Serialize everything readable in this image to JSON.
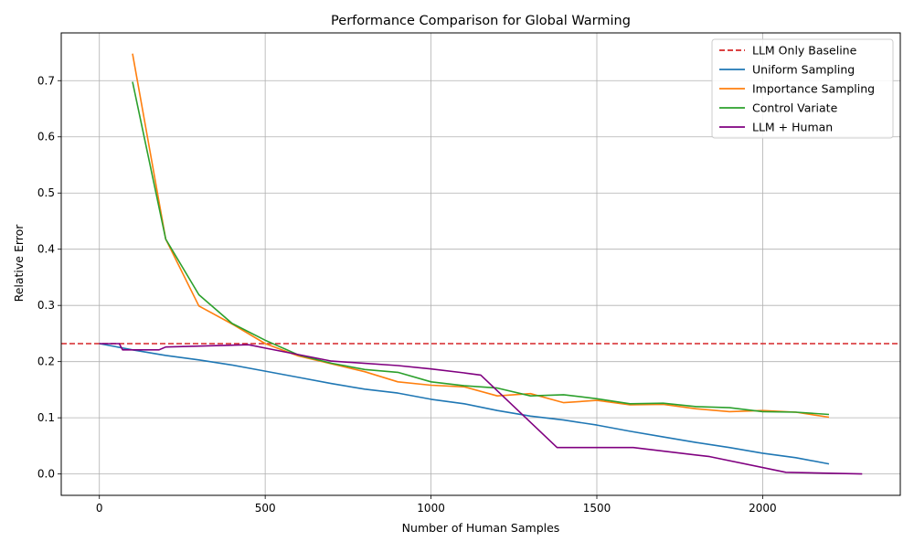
{
  "chart_data": {
    "type": "line",
    "title": "Performance Comparison for Global Warming",
    "xlabel": "Number of Human Samples",
    "ylabel": "Relative Error",
    "xlim": [
      -115,
      2415
    ],
    "ylim": [
      -0.038,
      0.785
    ],
    "xticks": [
      0,
      500,
      1000,
      1500,
      2000
    ],
    "yticks": [
      0.0,
      0.1,
      0.2,
      0.3,
      0.4,
      0.5,
      0.6,
      0.7
    ],
    "xtick_labels": [
      "0",
      "500",
      "1000",
      "1500",
      "2000"
    ],
    "ytick_labels": [
      "0.0",
      "0.1",
      "0.2",
      "0.3",
      "0.4",
      "0.5",
      "0.6",
      "0.7"
    ],
    "grid": true,
    "legend_position": "top-right",
    "baseline": {
      "name": "LLM Only Baseline",
      "y": 0.232,
      "color": "#d62728",
      "style": "dashed"
    },
    "series": [
      {
        "name": "Uniform Sampling",
        "color": "#1f77b4",
        "points": [
          [
            0,
            0.232
          ],
          [
            100,
            0.221
          ],
          [
            200,
            0.211
          ],
          [
            300,
            0.203
          ],
          [
            400,
            0.194
          ],
          [
            500,
            0.183
          ],
          [
            600,
            0.172
          ],
          [
            700,
            0.161
          ],
          [
            800,
            0.151
          ],
          [
            900,
            0.144
          ],
          [
            1000,
            0.133
          ],
          [
            1100,
            0.125
          ],
          [
            1200,
            0.113
          ],
          [
            1300,
            0.103
          ],
          [
            1400,
            0.096
          ],
          [
            1500,
            0.087
          ],
          [
            1600,
            0.076
          ],
          [
            1700,
            0.066
          ],
          [
            1800,
            0.056
          ],
          [
            1900,
            0.047
          ],
          [
            2000,
            0.037
          ],
          [
            2100,
            0.029
          ],
          [
            2200,
            0.018
          ]
        ]
      },
      {
        "name": "Importance Sampling",
        "color": "#ff7f0e",
        "points": [
          [
            100,
            0.748
          ],
          [
            200,
            0.418
          ],
          [
            300,
            0.299
          ],
          [
            400,
            0.267
          ],
          [
            500,
            0.232
          ],
          [
            600,
            0.21
          ],
          [
            700,
            0.196
          ],
          [
            800,
            0.182
          ],
          [
            900,
            0.164
          ],
          [
            1000,
            0.158
          ],
          [
            1100,
            0.155
          ],
          [
            1200,
            0.139
          ],
          [
            1300,
            0.143
          ],
          [
            1400,
            0.127
          ],
          [
            1500,
            0.131
          ],
          [
            1600,
            0.123
          ],
          [
            1700,
            0.124
          ],
          [
            1800,
            0.116
          ],
          [
            1900,
            0.111
          ],
          [
            2000,
            0.113
          ],
          [
            2100,
            0.11
          ],
          [
            2200,
            0.101
          ]
        ]
      },
      {
        "name": "Control Variate",
        "color": "#2ca02c",
        "points": [
          [
            100,
            0.698
          ],
          [
            200,
            0.418
          ],
          [
            300,
            0.319
          ],
          [
            400,
            0.268
          ],
          [
            500,
            0.238
          ],
          [
            600,
            0.212
          ],
          [
            700,
            0.197
          ],
          [
            800,
            0.186
          ],
          [
            900,
            0.181
          ],
          [
            1000,
            0.164
          ],
          [
            1100,
            0.157
          ],
          [
            1200,
            0.153
          ],
          [
            1300,
            0.139
          ],
          [
            1400,
            0.141
          ],
          [
            1500,
            0.134
          ],
          [
            1600,
            0.125
          ],
          [
            1700,
            0.126
          ],
          [
            1800,
            0.12
          ],
          [
            1900,
            0.118
          ],
          [
            2000,
            0.111
          ],
          [
            2100,
            0.11
          ],
          [
            2200,
            0.106
          ]
        ]
      },
      {
        "name": "LLM + Human",
        "color": "#800080",
        "points": [
          [
            0,
            0.232
          ],
          [
            60,
            0.232
          ],
          [
            70,
            0.221
          ],
          [
            180,
            0.221
          ],
          [
            200,
            0.226
          ],
          [
            450,
            0.23
          ],
          [
            500,
            0.224
          ],
          [
            700,
            0.201
          ],
          [
            900,
            0.193
          ],
          [
            1000,
            0.187
          ],
          [
            1100,
            0.18
          ],
          [
            1150,
            0.176
          ],
          [
            1380,
            0.047
          ],
          [
            1610,
            0.047
          ],
          [
            1840,
            0.031
          ],
          [
            2070,
            0.003
          ],
          [
            2300,
            0.0
          ]
        ]
      }
    ]
  }
}
